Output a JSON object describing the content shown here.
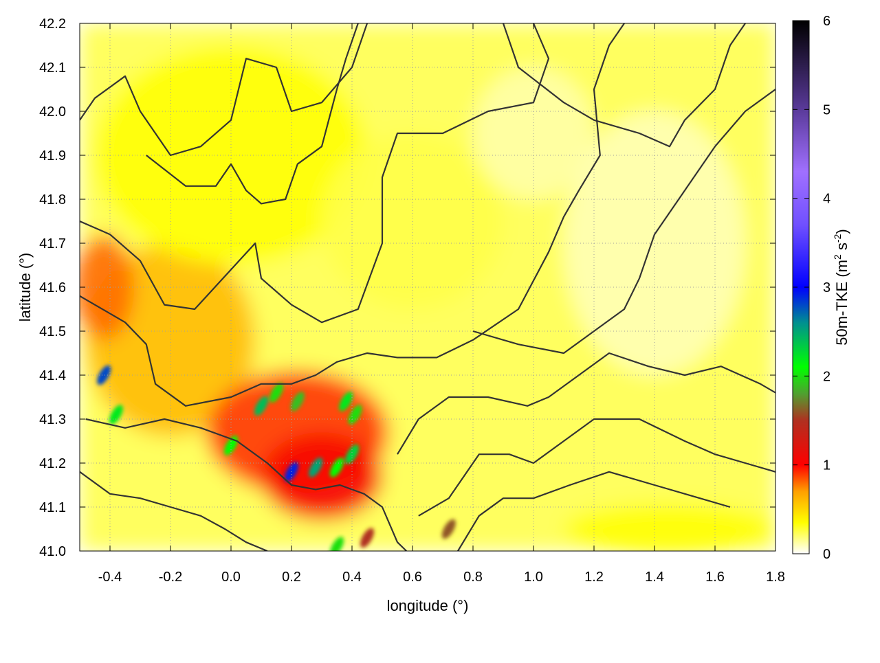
{
  "chart_data": {
    "type": "heatmap",
    "title": "",
    "xlabel": "longitude (°)",
    "ylabel": "latitude (°)",
    "xlim": [
      -0.5,
      1.8
    ],
    "ylim": [
      41.0,
      42.2
    ],
    "x_ticks": [
      {
        "value": -0.4,
        "label": "-0.4"
      },
      {
        "value": -0.2,
        "label": "-0.2"
      },
      {
        "value": 0.0,
        "label": "0.0"
      },
      {
        "value": 0.2,
        "label": "0.2"
      },
      {
        "value": 0.4,
        "label": "0.4"
      },
      {
        "value": 0.6,
        "label": "0.6"
      },
      {
        "value": 0.8,
        "label": "0.8"
      },
      {
        "value": 1.0,
        "label": "1.0"
      },
      {
        "value": 1.2,
        "label": "1.2"
      },
      {
        "value": 1.4,
        "label": "1.4"
      },
      {
        "value": 1.6,
        "label": "1.6"
      },
      {
        "value": 1.8,
        "label": "1.8"
      }
    ],
    "y_ticks": [
      {
        "value": 41.0,
        "label": "41.0"
      },
      {
        "value": 41.1,
        "label": "41.1"
      },
      {
        "value": 41.2,
        "label": "41.2"
      },
      {
        "value": 41.3,
        "label": "41.3"
      },
      {
        "value": 41.4,
        "label": "41.4"
      },
      {
        "value": 41.5,
        "label": "41.5"
      },
      {
        "value": 41.6,
        "label": "41.6"
      },
      {
        "value": 41.7,
        "label": "41.7"
      },
      {
        "value": 41.8,
        "label": "41.8"
      },
      {
        "value": 41.9,
        "label": "41.9"
      },
      {
        "value": 42.0,
        "label": "42.0"
      },
      {
        "value": 42.1,
        "label": "42.1"
      },
      {
        "value": 42.2,
        "label": "42.2"
      }
    ],
    "grid": true,
    "colorbar": {
      "label_main": "50m-TKE (m",
      "sup1": "2",
      "label_mid": " s",
      "sup2": "-2",
      "label_end": ")",
      "range": [
        0,
        6
      ],
      "ticks": [
        {
          "value": 0,
          "label": "0"
        },
        {
          "value": 1,
          "label": "1"
        },
        {
          "value": 2,
          "label": "2"
        },
        {
          "value": 3,
          "label": "3"
        },
        {
          "value": 4,
          "label": "4"
        },
        {
          "value": 5,
          "label": "5"
        },
        {
          "value": 6,
          "label": "6"
        }
      ],
      "stops": [
        {
          "value": 0.0,
          "color": "#ffffff"
        },
        {
          "value": 0.35,
          "color": "#ffff00"
        },
        {
          "value": 0.7,
          "color": "#ffa000"
        },
        {
          "value": 1.0,
          "color": "#ff0000"
        },
        {
          "value": 1.5,
          "color": "#b03020"
        },
        {
          "value": 1.8,
          "color": "#50a030"
        },
        {
          "value": 2.1,
          "color": "#00ff00"
        },
        {
          "value": 2.6,
          "color": "#009090"
        },
        {
          "value": 3.0,
          "color": "#0000ff"
        },
        {
          "value": 3.7,
          "color": "#7050ff"
        },
        {
          "value": 4.3,
          "color": "#a070ff"
        },
        {
          "value": 5.0,
          "color": "#5a3a9a"
        },
        {
          "value": 6.0,
          "color": "#000000"
        }
      ]
    },
    "field_regions": [
      {
        "lon": -0.2,
        "lat": 41.48,
        "rx": 0.28,
        "ry": 0.22,
        "tke": 0.6
      },
      {
        "lon": 0.22,
        "lat": 41.27,
        "rx": 0.3,
        "ry": 0.14,
        "tke": 0.9
      },
      {
        "lon": 0.3,
        "lat": 41.17,
        "rx": 0.2,
        "ry": 0.1,
        "tke": 1.05
      },
      {
        "lon": -0.42,
        "lat": 41.6,
        "rx": 0.1,
        "ry": 0.12,
        "tke": 0.8
      },
      {
        "lon": 0.0,
        "lat": 41.9,
        "rx": 0.45,
        "ry": 0.25,
        "tke": 0.35
      },
      {
        "lon": 0.6,
        "lat": 41.75,
        "rx": 0.3,
        "ry": 0.2,
        "tke": 0.25
      },
      {
        "lon": 1.45,
        "lat": 41.05,
        "rx": 0.35,
        "ry": 0.06,
        "tke": 0.35
      },
      {
        "lon": 1.0,
        "lat": 41.95,
        "rx": 0.2,
        "ry": 0.15,
        "tke": 0.12
      },
      {
        "lon": 1.4,
        "lat": 41.7,
        "rx": 0.3,
        "ry": 0.3,
        "tke": 0.1
      }
    ],
    "hotspots": [
      {
        "lon": -0.42,
        "lat": 41.4,
        "tke": 2.8
      },
      {
        "lon": -0.38,
        "lat": 41.31,
        "tke": 2.2
      },
      {
        "lon": 0.1,
        "lat": 41.33,
        "tke": 2.4
      },
      {
        "lon": 0.15,
        "lat": 41.36,
        "tke": 2.0
      },
      {
        "lon": 0.22,
        "lat": 41.34,
        "tke": 1.9
      },
      {
        "lon": 0.0,
        "lat": 41.24,
        "tke": 2.1
      },
      {
        "lon": 0.2,
        "lat": 41.18,
        "tke": 2.9
      },
      {
        "lon": 0.28,
        "lat": 41.19,
        "tke": 2.5
      },
      {
        "lon": 0.35,
        "lat": 41.19,
        "tke": 2.1
      },
      {
        "lon": 0.4,
        "lat": 41.22,
        "tke": 2.3
      },
      {
        "lon": 0.38,
        "lat": 41.34,
        "tke": 2.2
      },
      {
        "lon": 0.41,
        "lat": 41.31,
        "tke": 2.0
      },
      {
        "lon": 0.35,
        "lat": 41.01,
        "tke": 2.0
      },
      {
        "lon": 0.45,
        "lat": 41.03,
        "tke": 1.5
      },
      {
        "lon": 0.72,
        "lat": 41.05,
        "tke": 1.6
      }
    ],
    "contours": [
      [
        [
          -0.5,
          41.98
        ],
        [
          -0.45,
          42.03
        ],
        [
          -0.35,
          42.08
        ],
        [
          -0.3,
          42.0
        ],
        [
          -0.2,
          41.9
        ],
        [
          -0.1,
          41.92
        ],
        [
          0.0,
          41.98
        ],
        [
          0.05,
          42.12
        ],
        [
          0.15,
          42.1
        ],
        [
          0.2,
          42.0
        ],
        [
          0.3,
          42.02
        ],
        [
          0.4,
          42.1
        ],
        [
          0.45,
          42.2
        ]
      ],
      [
        [
          -0.28,
          41.9
        ],
        [
          -0.15,
          41.83
        ],
        [
          -0.05,
          41.83
        ],
        [
          0.0,
          41.88
        ],
        [
          0.05,
          41.82
        ],
        [
          0.1,
          41.79
        ],
        [
          0.18,
          41.8
        ],
        [
          0.22,
          41.88
        ],
        [
          0.3,
          41.92
        ],
        [
          0.35,
          42.05
        ],
        [
          0.38,
          42.12
        ],
        [
          0.42,
          42.2
        ]
      ],
      [
        [
          -0.5,
          41.75
        ],
        [
          -0.4,
          41.72
        ],
        [
          -0.3,
          41.66
        ],
        [
          -0.22,
          41.56
        ],
        [
          -0.12,
          41.55
        ],
        [
          0.0,
          41.64
        ],
        [
          0.08,
          41.7
        ],
        [
          0.1,
          41.62
        ],
        [
          0.2,
          41.56
        ],
        [
          0.3,
          41.52
        ],
        [
          0.42,
          41.55
        ],
        [
          0.5,
          41.7
        ],
        [
          0.5,
          41.85
        ],
        [
          0.55,
          41.95
        ],
        [
          0.7,
          41.95
        ],
        [
          0.85,
          42.0
        ],
        [
          1.0,
          42.02
        ],
        [
          1.05,
          42.12
        ],
        [
          1.0,
          42.2
        ]
      ],
      [
        [
          -0.5,
          41.58
        ],
        [
          -0.35,
          41.52
        ],
        [
          -0.28,
          41.47
        ],
        [
          -0.25,
          41.38
        ],
        [
          -0.15,
          41.33
        ],
        [
          0.0,
          41.35
        ],
        [
          0.1,
          41.38
        ],
        [
          0.2,
          41.38
        ],
        [
          0.28,
          41.4
        ],
        [
          0.35,
          41.43
        ],
        [
          0.45,
          41.45
        ],
        [
          0.55,
          41.44
        ],
        [
          0.68,
          41.44
        ],
        [
          0.8,
          41.48
        ],
        [
          0.95,
          41.55
        ],
        [
          1.05,
          41.68
        ],
        [
          1.1,
          41.76
        ],
        [
          1.15,
          41.82
        ],
        [
          1.22,
          41.9
        ],
        [
          1.2,
          42.05
        ],
        [
          1.25,
          42.15
        ],
        [
          1.3,
          42.2
        ]
      ],
      [
        [
          -0.48,
          41.3
        ],
        [
          -0.35,
          41.28
        ],
        [
          -0.22,
          41.3
        ],
        [
          -0.1,
          41.28
        ],
        [
          0.02,
          41.25
        ],
        [
          0.12,
          41.2
        ],
        [
          0.2,
          41.15
        ],
        [
          0.28,
          41.14
        ],
        [
          0.36,
          41.15
        ],
        [
          0.44,
          41.13
        ],
        [
          0.5,
          41.1
        ],
        [
          0.55,
          41.02
        ],
        [
          0.58,
          41.0
        ]
      ],
      [
        [
          -0.5,
          41.18
        ],
        [
          -0.4,
          41.13
        ],
        [
          -0.3,
          41.12
        ],
        [
          -0.2,
          41.1
        ],
        [
          -0.1,
          41.08
        ],
        [
          -0.02,
          41.05
        ],
        [
          0.05,
          41.02
        ],
        [
          0.12,
          41.0
        ]
      ],
      [
        [
          0.55,
          41.22
        ],
        [
          0.62,
          41.3
        ],
        [
          0.72,
          41.35
        ],
        [
          0.85,
          41.35
        ],
        [
          0.98,
          41.33
        ],
        [
          1.05,
          41.35
        ],
        [
          1.15,
          41.4
        ],
        [
          1.25,
          41.45
        ],
        [
          1.38,
          41.42
        ],
        [
          1.5,
          41.4
        ],
        [
          1.62,
          41.42
        ],
        [
          1.75,
          41.38
        ],
        [
          1.8,
          41.36
        ]
      ],
      [
        [
          0.62,
          41.08
        ],
        [
          0.72,
          41.12
        ],
        [
          0.82,
          41.22
        ],
        [
          0.92,
          41.22
        ],
        [
          1.0,
          41.2
        ],
        [
          1.1,
          41.25
        ],
        [
          1.2,
          41.3
        ],
        [
          1.35,
          41.3
        ],
        [
          1.5,
          41.25
        ],
        [
          1.6,
          41.22
        ],
        [
          1.7,
          41.2
        ],
        [
          1.8,
          41.18
        ]
      ],
      [
        [
          0.75,
          41.0
        ],
        [
          0.82,
          41.08
        ],
        [
          0.9,
          41.12
        ],
        [
          1.0,
          41.12
        ],
        [
          1.12,
          41.15
        ],
        [
          1.25,
          41.18
        ],
        [
          1.4,
          41.15
        ],
        [
          1.55,
          41.12
        ],
        [
          1.65,
          41.1
        ]
      ],
      [
        [
          0.8,
          41.5
        ],
        [
          0.95,
          41.47
        ],
        [
          1.1,
          41.45
        ],
        [
          1.2,
          41.5
        ],
        [
          1.3,
          41.55
        ],
        [
          1.35,
          41.62
        ],
        [
          1.4,
          41.72
        ],
        [
          1.5,
          41.82
        ],
        [
          1.6,
          41.92
        ],
        [
          1.7,
          42.0
        ],
        [
          1.8,
          42.05
        ]
      ],
      [
        [
          0.9,
          42.2
        ],
        [
          0.95,
          42.1
        ],
        [
          1.1,
          42.02
        ],
        [
          1.2,
          41.98
        ],
        [
          1.35,
          41.95
        ],
        [
          1.45,
          41.92
        ],
        [
          1.5,
          41.98
        ],
        [
          1.6,
          42.05
        ],
        [
          1.65,
          42.15
        ],
        [
          1.7,
          42.2
        ]
      ]
    ]
  }
}
